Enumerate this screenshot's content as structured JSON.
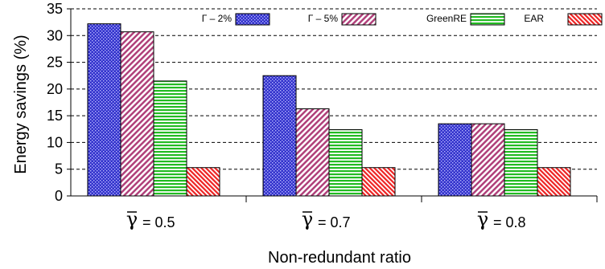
{
  "chart_data": {
    "type": "bar",
    "categories": [
      "= 0.5",
      "= 0.7",
      "= 0.8"
    ],
    "category_symbol": "γ",
    "series": [
      {
        "name": "Γ – 2%",
        "values": [
          32.2,
          22.5,
          13.5
        ],
        "color": "#3333cc",
        "pattern": "dots"
      },
      {
        "name": "Γ – 5%",
        "values": [
          30.7,
          16.3,
          13.5
        ],
        "color": "#cc6699",
        "pattern": "diagonal"
      },
      {
        "name": "GreenRE",
        "values": [
          21.5,
          12.4,
          12.4
        ],
        "color": "#33cc33",
        "pattern": "horizontal"
      },
      {
        "name": "EAR",
        "values": [
          5.3,
          5.3,
          5.3
        ],
        "color": "#ee2222",
        "pattern": "diagonal-dense"
      }
    ],
    "xlabel": "Non-redundant ratio",
    "ylabel": "Energy savings (%)",
    "ylim": [
      0,
      35
    ],
    "yticks": [
      0,
      5,
      10,
      15,
      20,
      25,
      30,
      35
    ],
    "grid": "y-dashed",
    "legend": "top"
  }
}
